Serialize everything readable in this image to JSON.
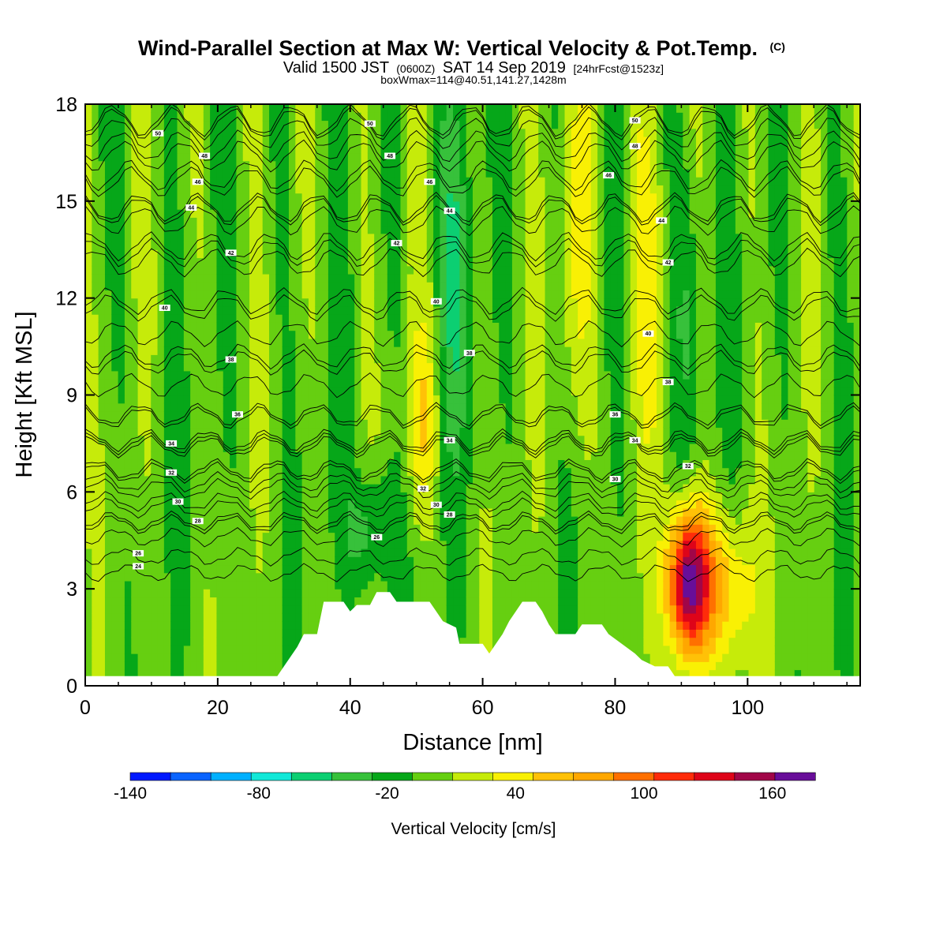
{
  "header": {
    "title": "Wind-Parallel Section at Max W: Vertical Velocity & Pot.Temp.",
    "copyright": "(C)",
    "valid_prefix": "Valid 1500 JST",
    "valid_utc": "(0600Z)",
    "valid_date": "SAT 14 Sep 2019",
    "forecast_info": "[24hrFcst@1523z]",
    "box_info": "boxWmax=114@40.51,141.27,1428m"
  },
  "chart_data": {
    "type": "heatmap",
    "xlabel": "Distance [nm]",
    "ylabel": "Height [Kft MSL]",
    "xlim": [
      0,
      117
    ],
    "ylim": [
      0,
      18
    ],
    "x_ticks": [
      0,
      20,
      40,
      60,
      80,
      100
    ],
    "y_ticks": [
      0,
      3,
      6,
      9,
      12,
      15,
      18
    ],
    "field": "Vertical Velocity [cm/s]",
    "contour_field": "Potential Temperature",
    "colorbar": {
      "title": "Vertical Velocity [cm/s]",
      "levels": [
        -140,
        -120,
        -100,
        -80,
        -60,
        -40,
        -20,
        0,
        20,
        40,
        60,
        80,
        100,
        120,
        140,
        160,
        180
      ],
      "colors": [
        "#0019ff",
        "#0a64ff",
        "#00b0ff",
        "#12e8d8",
        "#0ccf72",
        "#37c13b",
        "#06a719",
        "#66cf11",
        "#c6eb0a",
        "#f9f004",
        "#ffc107",
        "#ffa700",
        "#ff7000",
        "#ff2c0a",
        "#de0419",
        "#a10648",
        "#680e99"
      ],
      "tick_labels": [
        "-140",
        "-80",
        "-20",
        "40",
        "100",
        "160"
      ],
      "tick_values": [
        -140,
        -80,
        -20,
        40,
        100,
        160
      ]
    },
    "w_features": [
      {
        "x": 91,
        "y": 3.2,
        "peak": 175,
        "sx": 2.2,
        "sy": 1.6
      },
      {
        "x": 96,
        "y": 3.0,
        "peak": 65,
        "sx": 3.5,
        "sy": 1.7
      },
      {
        "x": 51,
        "y": 8.2,
        "peak": 48,
        "sx": 1.6,
        "sy": 2.0
      },
      {
        "x": 43,
        "y": 4.8,
        "peak": -45,
        "sx": 2.8,
        "sy": 1.3
      },
      {
        "x": 56,
        "y": 13.0,
        "peak": -40,
        "sx": 2.0,
        "sy": 4.0
      },
      {
        "x": 91,
        "y": 12.0,
        "peak": -35,
        "sx": 1.5,
        "sy": 4.0
      },
      {
        "x": 74,
        "y": 13.0,
        "peak": 35,
        "sx": 2.0,
        "sy": 4.0
      },
      {
        "x": 85,
        "y": 13.0,
        "peak": 35,
        "sx": 2.0,
        "sy": 4.0
      }
    ],
    "terrain": [
      [
        0,
        0.3
      ],
      [
        29,
        0.3
      ],
      [
        30,
        0.6
      ],
      [
        31,
        0.9
      ],
      [
        32,
        1.2
      ],
      [
        33,
        1.6
      ],
      [
        35,
        1.6
      ],
      [
        36,
        2.6
      ],
      [
        39,
        2.6
      ],
      [
        40,
        2.3
      ],
      [
        41,
        2.5
      ],
      [
        43,
        2.5
      ],
      [
        44,
        2.9
      ],
      [
        46,
        2.9
      ],
      [
        47,
        2.6
      ],
      [
        52,
        2.6
      ],
      [
        53,
        2.3
      ],
      [
        54,
        2.0
      ],
      [
        56,
        1.8
      ],
      [
        56.5,
        1.3
      ],
      [
        57,
        1.3
      ],
      [
        60,
        1.3
      ],
      [
        61,
        1.0
      ],
      [
        62,
        1.3
      ],
      [
        63,
        1.6
      ],
      [
        64,
        2.0
      ],
      [
        65,
        2.3
      ],
      [
        66,
        2.6
      ],
      [
        68,
        2.6
      ],
      [
        69,
        2.3
      ],
      [
        70,
        1.9
      ],
      [
        71,
        1.6
      ],
      [
        74,
        1.6
      ],
      [
        75,
        1.9
      ],
      [
        78,
        1.9
      ],
      [
        79,
        1.6
      ],
      [
        81,
        1.3
      ],
      [
        83,
        1.0
      ],
      [
        84,
        0.8
      ],
      [
        86,
        0.6
      ],
      [
        88,
        0.6
      ],
      [
        89,
        0.3
      ],
      [
        117,
        0.3
      ]
    ],
    "theta_contours": [
      {
        "label": "24",
        "z": 3.5,
        "lx": 8,
        "ly": 3.7
      },
      {
        "label": "26",
        "z": 4.0,
        "lx": 8,
        "ly": 4.1
      },
      {
        "label": "26",
        "z": 4.6,
        "lx": 44,
        "ly": 4.6
      },
      {
        "label": "28",
        "z": 5.0,
        "lx": 55,
        "ly": 5.3
      },
      {
        "label": "28",
        "z": 5.1,
        "lx": 17,
        "ly": 5.1
      },
      {
        "label": "30",
        "z": 5.5,
        "lx": 53,
        "ly": 5.6
      },
      {
        "label": "30",
        "z": 5.7,
        "lx": 14,
        "ly": 5.7
      },
      {
        "label": "30",
        "z": 6.3,
        "lx": 80,
        "ly": 6.4
      },
      {
        "label": "32",
        "z": 6.1,
        "lx": 51,
        "ly": 6.1
      },
      {
        "label": "32",
        "z": 6.6,
        "lx": 13,
        "ly": 6.6
      },
      {
        "label": "32",
        "z": 6.7,
        "lx": 91,
        "ly": 6.8
      },
      {
        "label": "34",
        "z": 7.4,
        "lx": 13,
        "ly": 7.5
      },
      {
        "label": "34",
        "z": 7.6,
        "lx": 55,
        "ly": 7.6
      },
      {
        "label": "34",
        "z": 7.5,
        "lx": 83,
        "ly": 7.6
      },
      {
        "label": "36",
        "z": 8.4,
        "lx": 23,
        "ly": 8.4
      },
      {
        "label": "36",
        "z": 8.3,
        "lx": 80,
        "ly": 8.4
      },
      {
        "label": "38",
        "z": 10.0,
        "lx": 22,
        "ly": 10.1
      },
      {
        "label": "38",
        "z": 10.2,
        "lx": 58,
        "ly": 10.3
      },
      {
        "label": "38",
        "z": 9.3,
        "lx": 88,
        "ly": 9.4
      },
      {
        "label": "40",
        "z": 11.7,
        "lx": 12,
        "ly": 11.7
      },
      {
        "label": "40",
        "z": 11.9,
        "lx": 53,
        "ly": 11.9
      },
      {
        "label": "40",
        "z": 10.9,
        "lx": 85,
        "ly": 10.9
      },
      {
        "label": "42",
        "z": 13.4,
        "lx": 22,
        "ly": 13.4
      },
      {
        "label": "42",
        "z": 13.6,
        "lx": 47,
        "ly": 13.7
      },
      {
        "label": "42",
        "z": 13.1,
        "lx": 88,
        "ly": 13.1
      },
      {
        "label": "44",
        "z": 14.8,
        "lx": 16,
        "ly": 14.8
      },
      {
        "label": "44",
        "z": 14.7,
        "lx": 55,
        "ly": 14.7
      },
      {
        "label": "44",
        "z": 14.4,
        "lx": 87,
        "ly": 14.4
      },
      {
        "label": "46",
        "z": 15.6,
        "lx": 17,
        "ly": 15.6
      },
      {
        "label": "46",
        "z": 15.6,
        "lx": 52,
        "ly": 15.6
      },
      {
        "label": "46",
        "z": 15.8,
        "lx": 79,
        "ly": 15.8
      },
      {
        "label": "48",
        "z": 16.4,
        "lx": 18,
        "ly": 16.4
      },
      {
        "label": "48",
        "z": 16.4,
        "lx": 46,
        "ly": 16.4
      },
      {
        "label": "48",
        "z": 16.7,
        "lx": 83,
        "ly": 16.7
      },
      {
        "label": "50",
        "z": 17.1,
        "lx": 11,
        "ly": 17.1
      },
      {
        "label": "50",
        "z": 17.4,
        "lx": 43,
        "ly": 17.4
      },
      {
        "label": "50",
        "z": 17.5,
        "lx": 83,
        "ly": 17.5
      }
    ]
  }
}
